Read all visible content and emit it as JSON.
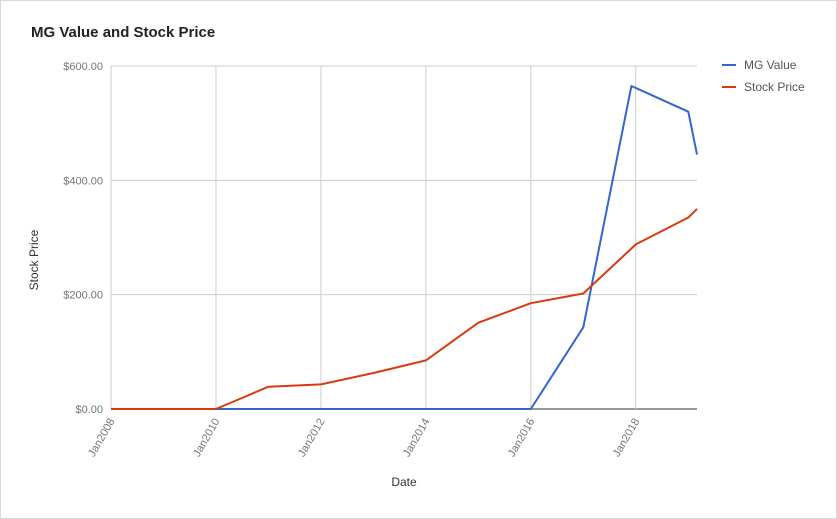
{
  "chart_data": {
    "type": "line",
    "title": "MG Value and Stock Price",
    "xlabel": "Date",
    "ylabel": "Stock Price",
    "x_ticks": [
      "Jan2008",
      "Jan2010",
      "Jan2012",
      "Jan2014",
      "Jan2016",
      "Jan2018"
    ],
    "y_ticks": [
      "$0.00",
      "$200.00",
      "$400.00",
      "$600.00"
    ],
    "xlim": [
      "2008-01",
      "2019-03"
    ],
    "ylim": [
      0,
      600
    ],
    "grid": true,
    "legend_position": "right",
    "series": [
      {
        "name": "MG Value",
        "color": "#3366cc",
        "points": [
          [
            "2008-01",
            0
          ],
          [
            "2010-01",
            0
          ],
          [
            "2011-01",
            0
          ],
          [
            "2012-01",
            0
          ],
          [
            "2013-01",
            0
          ],
          [
            "2014-01",
            0
          ],
          [
            "2015-01",
            0
          ],
          [
            "2016-01",
            0
          ],
          [
            "2017-01",
            143
          ],
          [
            "2017-12",
            565
          ],
          [
            "2019-01",
            520
          ],
          [
            "2019-03",
            445
          ]
        ]
      },
      {
        "name": "Stock Price",
        "color": "#dc3912",
        "points": [
          [
            "2008-01",
            0
          ],
          [
            "2010-01",
            0
          ],
          [
            "2011-01",
            39
          ],
          [
            "2012-01",
            43
          ],
          [
            "2013-01",
            63
          ],
          [
            "2014-01",
            85
          ],
          [
            "2015-01",
            151
          ],
          [
            "2016-01",
            185
          ],
          [
            "2017-01",
            202
          ],
          [
            "2018-01",
            288
          ],
          [
            "2019-01",
            335
          ],
          [
            "2019-03",
            350
          ]
        ]
      }
    ]
  }
}
